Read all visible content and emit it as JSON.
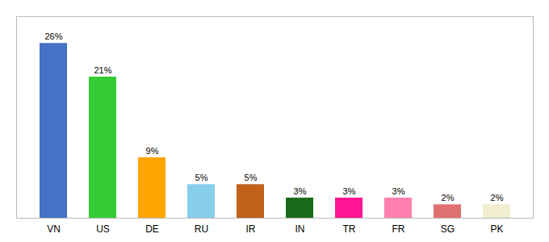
{
  "chart_data": {
    "type": "bar",
    "categories": [
      "VN",
      "US",
      "DE",
      "RU",
      "IR",
      "IN",
      "TR",
      "FR",
      "SG",
      "PK"
    ],
    "values": [
      26,
      21,
      9,
      5,
      5,
      3,
      3,
      3,
      2,
      2
    ],
    "value_labels": [
      "26%",
      "21%",
      "9%",
      "5%",
      "5%",
      "3%",
      "3%",
      "3%",
      "2%",
      "2%"
    ],
    "colors": [
      "#4472C4",
      "#33CC33",
      "#FFA500",
      "#87CEEB",
      "#C0621A",
      "#1B6B1B",
      "#FF1493",
      "#FF80B0",
      "#E07070",
      "#F0EDD0"
    ],
    "ylim": [
      0,
      30
    ],
    "data_labels": true,
    "tick_labels": "x",
    "grid": false
  }
}
